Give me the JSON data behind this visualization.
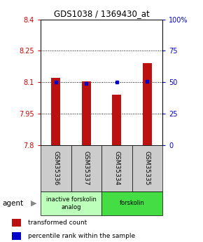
{
  "title": "GDS1038 / 1369430_at",
  "samples": [
    "GSM35336",
    "GSM35337",
    "GSM35334",
    "GSM35335"
  ],
  "bar_values": [
    8.12,
    8.105,
    8.04,
    8.19
  ],
  "percentile_values": [
    50,
    49,
    50,
    51
  ],
  "ylim": [
    7.8,
    8.4
  ],
  "yticks": [
    7.8,
    7.95,
    8.1,
    8.25,
    8.4
  ],
  "ytick_labels_left": [
    "7.8",
    "7.95",
    "8.1",
    "8.25",
    "8.4"
  ],
  "ytick_labels_right": [
    "0",
    "25",
    "50",
    "75",
    "100%"
  ],
  "bar_color": "#bb1111",
  "dot_color": "#0000cc",
  "bar_width": 0.3,
  "groups": [
    {
      "label": "inactive forskolin\nanalog",
      "indices": [
        0,
        1
      ],
      "color": "#bbffbb"
    },
    {
      "label": "forskolin",
      "indices": [
        2,
        3
      ],
      "color": "#44dd44"
    }
  ],
  "legend_items": [
    {
      "color": "#bb1111",
      "label": "transformed count"
    },
    {
      "color": "#0000cc",
      "label": "percentile rank within the sample"
    }
  ],
  "background_color": "#ffffff",
  "sample_box_color": "#cccccc",
  "title_fontsize": 8.5,
  "axis_fontsize": 7,
  "label_fontsize": 6.5
}
